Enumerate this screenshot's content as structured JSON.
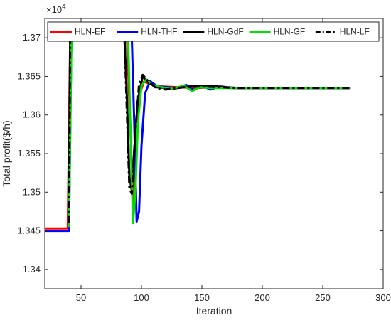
{
  "chart_data": {
    "type": "line",
    "xlabel": "Iteration",
    "ylabel": "Total profit($/h)",
    "y_multiplier_label": "×10^4",
    "xlim": [
      20,
      300
    ],
    "ylim": [
      1.3375,
      1.3725
    ],
    "x_ticks": [
      50,
      100,
      150,
      200,
      250,
      300
    ],
    "x_tick_labels": [
      "50",
      "100",
      "150",
      "200",
      "250",
      "300"
    ],
    "y_ticks": [
      1.34,
      1.345,
      1.35,
      1.355,
      1.36,
      1.365,
      1.37
    ],
    "y_tick_labels": [
      "1.34",
      "1.345",
      "1.35",
      "1.355",
      "1.36",
      "1.365",
      "1.37"
    ],
    "grid": false,
    "legend_position": "top",
    "series": [
      {
        "name": "HLN-EF",
        "color": "#ff0000",
        "dash": "solid",
        "points": [
          [
            20,
            1.3453
          ],
          [
            39,
            1.3453
          ],
          [
            41,
            1.3698
          ],
          [
            88,
            1.3699
          ],
          [
            91,
            1.3575
          ],
          [
            93,
            1.347
          ],
          [
            95,
            1.354
          ],
          [
            98,
            1.3625
          ],
          [
            102,
            1.3643
          ],
          [
            108,
            1.364
          ],
          [
            115,
            1.3637
          ],
          [
            130,
            1.3636
          ],
          [
            145,
            1.3635
          ],
          [
            160,
            1.3636
          ],
          [
            175,
            1.3635
          ],
          [
            273,
            1.3635
          ]
        ]
      },
      {
        "name": "HLN-THF",
        "color": "#0000ff",
        "dash": "solid",
        "points": [
          [
            20,
            1.345
          ],
          [
            40,
            1.345
          ],
          [
            42,
            1.37
          ],
          [
            92,
            1.37
          ],
          [
            94,
            1.359
          ],
          [
            96,
            1.3462
          ],
          [
            98,
            1.3475
          ],
          [
            100,
            1.356
          ],
          [
            103,
            1.3628
          ],
          [
            107,
            1.3644
          ],
          [
            113,
            1.3637
          ],
          [
            120,
            1.3636
          ],
          [
            130,
            1.3635
          ],
          [
            137,
            1.3639
          ],
          [
            143,
            1.3632
          ],
          [
            150,
            1.3638
          ],
          [
            157,
            1.3633
          ],
          [
            165,
            1.3637
          ],
          [
            175,
            1.3635
          ],
          [
            273,
            1.3635
          ]
        ]
      },
      {
        "name": "HLN-GdF",
        "color": "#000000",
        "dash": "solid",
        "points": [
          [
            40,
            1.3458
          ],
          [
            41,
            1.3698
          ],
          [
            86,
            1.3699
          ],
          [
            88,
            1.362
          ],
          [
            90,
            1.352
          ],
          [
            92,
            1.3502
          ],
          [
            94,
            1.3555
          ],
          [
            97,
            1.362
          ],
          [
            101,
            1.365
          ],
          [
            106,
            1.3642
          ],
          [
            112,
            1.3636
          ],
          [
            125,
            1.3634
          ],
          [
            140,
            1.3637
          ],
          [
            155,
            1.3638
          ],
          [
            170,
            1.3636
          ],
          [
            180,
            1.3635
          ],
          [
            273,
            1.3635
          ]
        ]
      },
      {
        "name": "HLN-GF",
        "color": "#00e000",
        "dash": "solid",
        "points": [
          [
            40,
            1.3455
          ],
          [
            42,
            1.3697
          ],
          [
            89,
            1.3698
          ],
          [
            91,
            1.3575
          ],
          [
            93,
            1.346
          ],
          [
            95,
            1.35
          ],
          [
            97,
            1.359
          ],
          [
            100,
            1.3638
          ],
          [
            104,
            1.3646
          ],
          [
            109,
            1.3639
          ],
          [
            116,
            1.3636
          ],
          [
            125,
            1.3634
          ],
          [
            135,
            1.3638
          ],
          [
            142,
            1.3631
          ],
          [
            148,
            1.3636
          ],
          [
            158,
            1.3635
          ],
          [
            273,
            1.3635
          ]
        ]
      },
      {
        "name": "HLN-LF",
        "color": "#000000",
        "dash": "dashdot",
        "points": [
          [
            40,
            1.346
          ],
          [
            41,
            1.3697
          ],
          [
            86,
            1.3697
          ],
          [
            88,
            1.36
          ],
          [
            90,
            1.3505
          ],
          [
            92,
            1.3498
          ],
          [
            95,
            1.358
          ],
          [
            98,
            1.364
          ],
          [
            101,
            1.3652
          ],
          [
            106,
            1.3643
          ],
          [
            112,
            1.3635
          ],
          [
            120,
            1.3633
          ],
          [
            135,
            1.3636
          ],
          [
            150,
            1.3637
          ],
          [
            165,
            1.3636
          ],
          [
            180,
            1.3635
          ],
          [
            273,
            1.3635
          ]
        ]
      }
    ]
  }
}
